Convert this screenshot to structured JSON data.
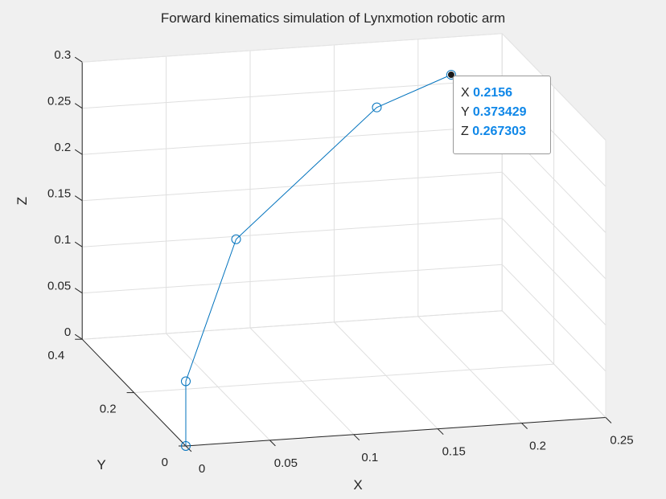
{
  "chart_data": {
    "type": "line3d",
    "title": "Forward kinematics simulation of Lynxmotion robotic arm",
    "xlabel": "X",
    "ylabel": "Y",
    "zlabel": "Z",
    "xlim": [
      0,
      0.25
    ],
    "ylim": [
      0,
      0.4
    ],
    "zlim": [
      0,
      0.3
    ],
    "x_ticks": [
      "0",
      "0.05",
      "0.1",
      "0.15",
      "0.2",
      "0.25"
    ],
    "y_ticks": [
      "0",
      "0.2",
      "0.4"
    ],
    "z_ticks": [
      "0",
      "0.05",
      "0.1",
      "0.15",
      "0.2",
      "0.25",
      "0.3"
    ],
    "grid": true,
    "series": [
      {
        "color": "#0072bd",
        "marker": "circle",
        "x": [
          0,
          0,
          0.05,
          0.16,
          0.2156
        ],
        "y": [
          0,
          0,
          0.13,
          0.3,
          0.373429
        ],
        "z": [
          0,
          0.07,
          0.18,
          0.26,
          0.267303
        ]
      }
    ],
    "datatip": {
      "x_label": "X",
      "x_value": "0.2156",
      "y_label": "Y",
      "y_value": "0.373429",
      "z_label": "Z",
      "z_value": "0.267303"
    }
  }
}
